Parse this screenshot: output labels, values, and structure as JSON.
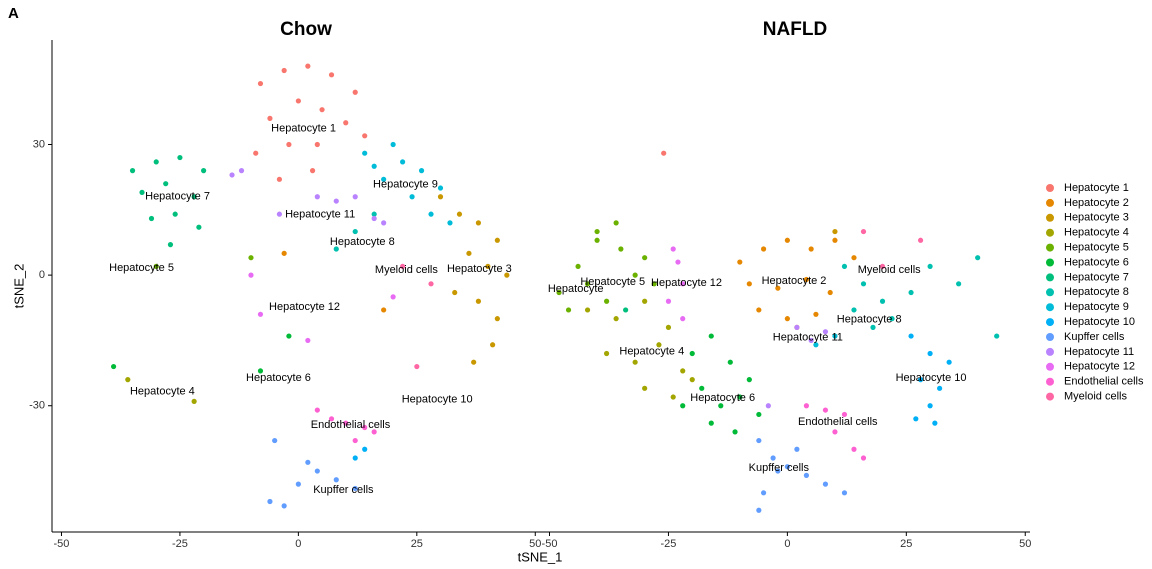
{
  "panel_label": "A",
  "xlabel": "tSNE_1",
  "ylabel": "tSNE_2",
  "legend": [
    {
      "name": "Hepatocyte 1",
      "color": "#F8766D"
    },
    {
      "name": "Hepatocyte 2",
      "color": "#E58700"
    },
    {
      "name": "Hepatocyte 3",
      "color": "#C99800"
    },
    {
      "name": "Hepatocyte 4",
      "color": "#A3A500"
    },
    {
      "name": "Hepatocyte 5",
      "color": "#6BB100"
    },
    {
      "name": "Hepatocyte 6",
      "color": "#00BA38"
    },
    {
      "name": "Hepatocyte 7",
      "color": "#00BF7D"
    },
    {
      "name": "Hepatocyte 8",
      "color": "#00C0AF"
    },
    {
      "name": "Hepatocyte 9",
      "color": "#00BCD8"
    },
    {
      "name": "Hepatocyte 10",
      "color": "#00B0F6"
    },
    {
      "name": "Kupffer cells",
      "color": "#619CFF"
    },
    {
      "name": "Hepatocyte 11",
      "color": "#B983FF"
    },
    {
      "name": "Hepatocyte 12",
      "color": "#E76BF3"
    },
    {
      "name": "Endothelial cells",
      "color": "#FD61D1"
    },
    {
      "name": "Myeloid cells",
      "color": "#FF67A4"
    }
  ],
  "chart_data": [
    {
      "type": "scatter",
      "title": "Chow",
      "xlim": [
        -52,
        51
      ],
      "ylim": [
        -59,
        54
      ],
      "xticks": [
        -50,
        -25,
        0,
        25,
        50
      ],
      "yticks": [
        -30,
        0,
        30
      ],
      "annotations": [
        {
          "text": "Hepatocyte 1",
          "x": 1.1,
          "y": 33.7
        },
        {
          "text": "Hepatocyte 7",
          "x": -25.5,
          "y": 18
        },
        {
          "text": "Hepatocyte 11",
          "x": 4.6,
          "y": 13.9
        },
        {
          "text": "Hepatocyte 9",
          "x": 22.6,
          "y": 20.8
        },
        {
          "text": "Hepatocyte 8",
          "x": 13.5,
          "y": 7.6
        },
        {
          "text": "Hepatocyte 5",
          "x": -33.1,
          "y": 1.6
        },
        {
          "text": "Myeloid cells",
          "x": 22.8,
          "y": 1.2
        },
        {
          "text": "Hepatocyte 3",
          "x": 38.2,
          "y": 1.4
        },
        {
          "text": "Hepatocyte 12",
          "x": 1.3,
          "y": -7.4
        },
        {
          "text": "Hepatocyte 6",
          "x": -4.2,
          "y": -23.6
        },
        {
          "text": "Hepatocyte 4",
          "x": -28.7,
          "y": -26.8
        },
        {
          "text": "Hepatocyte 10",
          "x": 29.3,
          "y": -28.6
        },
        {
          "text": "Endothelial cells",
          "x": 11,
          "y": -34.4
        },
        {
          "text": "Kupffer cells",
          "x": 9.5,
          "y": -49.4
        }
      ],
      "series": [
        {
          "x": [
            -8,
            -3,
            2,
            7,
            12,
            -6,
            0,
            5,
            10,
            -9,
            -2,
            4,
            14,
            -4,
            3
          ],
          "y": [
            44,
            47,
            48,
            46,
            42,
            36,
            40,
            38,
            35,
            28,
            30,
            30,
            32,
            22,
            24
          ]
        },
        {
          "x": [
            18,
            -3
          ],
          "y": [
            -8,
            5
          ]
        },
        {
          "x": [
            30,
            34,
            38,
            42,
            36,
            40,
            44,
            33,
            38,
            42,
            41,
            37
          ],
          "y": [
            18,
            14,
            12,
            8,
            5,
            2,
            0,
            -4,
            -6,
            -10,
            -16,
            -20
          ]
        },
        {
          "x": [
            -36,
            -22
          ],
          "y": [
            -24,
            -29
          ]
        },
        {
          "x": [
            -30,
            -10
          ],
          "y": [
            2,
            4
          ]
        },
        {
          "x": [
            -8,
            -2,
            -39
          ],
          "y": [
            -22,
            -14,
            -21
          ]
        },
        {
          "x": [
            -35,
            -30,
            -25,
            -20,
            -33,
            -28,
            -22,
            -31,
            -26,
            -21,
            -27
          ],
          "y": [
            24,
            26,
            27,
            24,
            19,
            21,
            18,
            13,
            14,
            11,
            7
          ]
        },
        {
          "x": [
            12,
            16,
            8
          ],
          "y": [
            10,
            14,
            6
          ]
        },
        {
          "x": [
            14,
            20,
            26,
            30,
            18,
            24,
            28,
            32,
            22,
            16
          ],
          "y": [
            28,
            30,
            24,
            20,
            22,
            18,
            14,
            12,
            26,
            25
          ]
        },
        {
          "x": [
            14,
            12
          ],
          "y": [
            -40,
            -42
          ]
        },
        {
          "x": [
            -6,
            -3,
            0,
            4,
            8,
            12,
            -5,
            2
          ],
          "y": [
            -52,
            -53,
            -48,
            -45,
            -47,
            -49,
            -38,
            -43
          ]
        },
        {
          "x": [
            -12,
            -14,
            -4,
            4,
            8,
            12,
            16,
            18
          ],
          "y": [
            24,
            23,
            14,
            18,
            17,
            18,
            13,
            12
          ]
        },
        {
          "x": [
            -8,
            -10,
            2,
            20
          ],
          "y": [
            -9,
            0,
            -15,
            -5
          ]
        },
        {
          "x": [
            4,
            7,
            10,
            14,
            12,
            16
          ],
          "y": [
            -31,
            -33,
            -34,
            -35,
            -38,
            -36
          ]
        },
        {
          "x": [
            22,
            28,
            25
          ],
          "y": [
            2,
            -2,
            -21
          ]
        }
      ]
    },
    {
      "type": "scatter",
      "title": "NAFLD",
      "xlim": [
        -52,
        51
      ],
      "ylim": [
        -59,
        54
      ],
      "xticks": [
        -50,
        -25,
        0,
        25,
        50
      ],
      "annotations": [
        {
          "text": "Hepatocyte",
          "x": -44.5,
          "y": -3.2
        },
        {
          "text": "Hepatocyte 5",
          "x": -36.7,
          "y": -1.6
        },
        {
          "text": "Hepatocyte 12",
          "x": -21.2,
          "y": -1.8
        },
        {
          "text": "Hepatocyte 2",
          "x": 1.4,
          "y": -1.4
        },
        {
          "text": "Myeloid cells",
          "x": 21.4,
          "y": 1.2
        },
        {
          "text": "Hepatocyte 8",
          "x": 17.2,
          "y": -10.2
        },
        {
          "text": "Hepatocyte 11",
          "x": 4.3,
          "y": -14.3
        },
        {
          "text": "Hepatocyte 4",
          "x": -28.5,
          "y": -17.6
        },
        {
          "text": "Hepatocyte 10",
          "x": 30.2,
          "y": -23.6
        },
        {
          "text": "Hepatocyte 6",
          "x": -13.6,
          "y": -28.2
        },
        {
          "text": "Endothelial cells",
          "x": 10.6,
          "y": -33.7
        },
        {
          "text": "Kupffer cells",
          "x": -1.8,
          "y": -44.3
        }
      ],
      "series": [
        {
          "x": [
            -26
          ],
          "y": [
            28
          ]
        },
        {
          "x": [
            -10,
            -5,
            0,
            5,
            10,
            14,
            -8,
            -2,
            4,
            9,
            -6,
            0,
            6,
            2
          ],
          "y": [
            3,
            6,
            8,
            6,
            8,
            4,
            -2,
            -3,
            -1,
            -4,
            -8,
            -10,
            -9,
            -12
          ]
        },
        {
          "x": [
            10
          ],
          "y": [
            10
          ]
        },
        {
          "x": [
            -42,
            -36,
            -30,
            -25,
            -38,
            -32,
            -27,
            -22,
            -30,
            -24,
            -20
          ],
          "y": [
            -8,
            -10,
            -6,
            -12,
            -18,
            -20,
            -16,
            -22,
            -26,
            -28,
            -24
          ]
        },
        {
          "x": [
            -48,
            -44,
            -40,
            -35,
            -30,
            -46,
            -42,
            -38,
            -32,
            -40,
            -36,
            -28
          ],
          "y": [
            -4,
            2,
            8,
            6,
            4,
            -8,
            -2,
            -6,
            0,
            10,
            12,
            -2
          ]
        },
        {
          "x": [
            -20,
            -16,
            -12,
            -8,
            -18,
            -14,
            -10,
            -6,
            -22,
            -16,
            -11
          ],
          "y": [
            -18,
            -14,
            -20,
            -24,
            -26,
            -30,
            -28,
            -32,
            -30,
            -34,
            -36
          ]
        },
        {
          "x": [
            -34
          ],
          "y": [
            -8
          ]
        },
        {
          "x": [
            12,
            16,
            20,
            22,
            18,
            14,
            26,
            30,
            36,
            40,
            44
          ],
          "y": [
            2,
            -2,
            -6,
            -10,
            -12,
            -8,
            -4,
            2,
            -2,
            4,
            -14
          ]
        },
        {
          "x": [
            6,
            10
          ],
          "y": [
            -16,
            -14
          ]
        },
        {
          "x": [
            26,
            30,
            34,
            28,
            32,
            30,
            27,
            31
          ],
          "y": [
            -14,
            -18,
            -20,
            -24,
            -26,
            -30,
            -33,
            -34
          ]
        },
        {
          "x": [
            -6,
            -3,
            0,
            4,
            8,
            12,
            -5,
            -6,
            2,
            -2
          ],
          "y": [
            -38,
            -42,
            -44,
            -46,
            -48,
            -50,
            -50,
            -54,
            -40,
            -45
          ]
        },
        {
          "x": [
            2,
            5,
            8,
            -4
          ],
          "y": [
            -12,
            -15,
            -13,
            -30
          ]
        },
        {
          "x": [
            -24,
            -23,
            -22,
            -25,
            -22
          ],
          "y": [
            6,
            3,
            -2,
            -6,
            -10
          ]
        },
        {
          "x": [
            4,
            8,
            12,
            10,
            14,
            16
          ],
          "y": [
            -30,
            -31,
            -32,
            -36,
            -40,
            -42
          ]
        },
        {
          "x": [
            16,
            20,
            28
          ],
          "y": [
            10,
            2,
            8
          ]
        }
      ]
    }
  ]
}
